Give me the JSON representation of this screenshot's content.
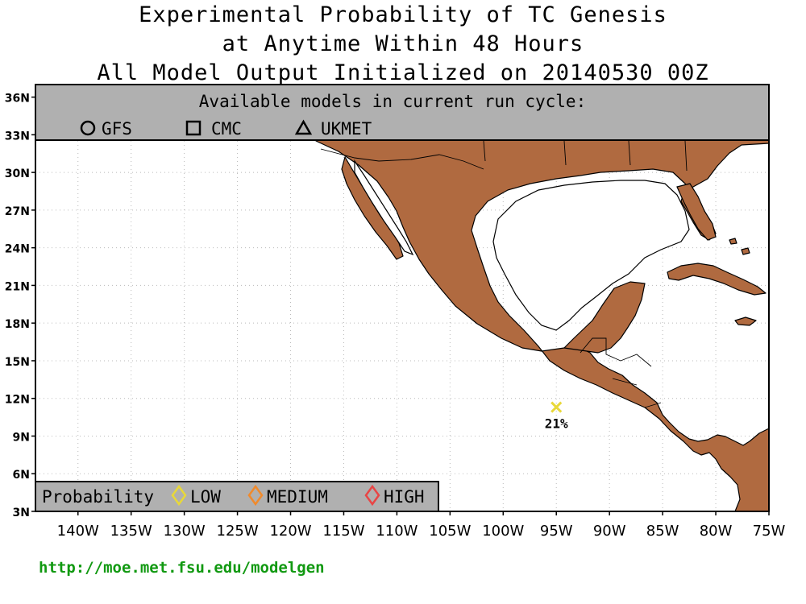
{
  "title": {
    "line1": "Experimental Probability of TC Genesis",
    "line2": "at Anytime Within 48 Hours",
    "line3": "All Model Output Initialized on 20140530 00Z"
  },
  "models_box": {
    "heading": "Available models in current run cycle:",
    "models": [
      {
        "label": "GFS",
        "icon": "circle-icon"
      },
      {
        "label": "CMC",
        "icon": "square-icon"
      },
      {
        "label": "UKMET",
        "icon": "triangle-icon"
      }
    ]
  },
  "legend": {
    "title": "Probability",
    "items": [
      {
        "label": "LOW",
        "color": "#e8d83a"
      },
      {
        "label": "MEDIUM",
        "color": "#f08a2c"
      },
      {
        "label": "HIGH",
        "color": "#e84545"
      }
    ]
  },
  "axes": {
    "lat_labels": [
      "36N",
      "33N",
      "30N",
      "27N",
      "24N",
      "21N",
      "18N",
      "15N",
      "12N",
      "9N",
      "6N",
      "3N"
    ],
    "lon_labels": [
      "140W",
      "135W",
      "130W",
      "125W",
      "120W",
      "115W",
      "110W",
      "105W",
      "100W",
      "95W",
      "90W",
      "85W",
      "80W",
      "75W"
    ],
    "lat_range": [
      3,
      37
    ],
    "lon_range": [
      -144,
      -75
    ]
  },
  "genesis_points": [
    {
      "lon": -95,
      "lat": 11.3,
      "probability_label": "21%",
      "color": "#e8d83a"
    }
  ],
  "colors": {
    "land": "#b06a40",
    "ocean": "#ffffff",
    "box": "#b0b0b0",
    "url": "#119911"
  },
  "url": "http://moe.met.fsu.edu/modelgen"
}
